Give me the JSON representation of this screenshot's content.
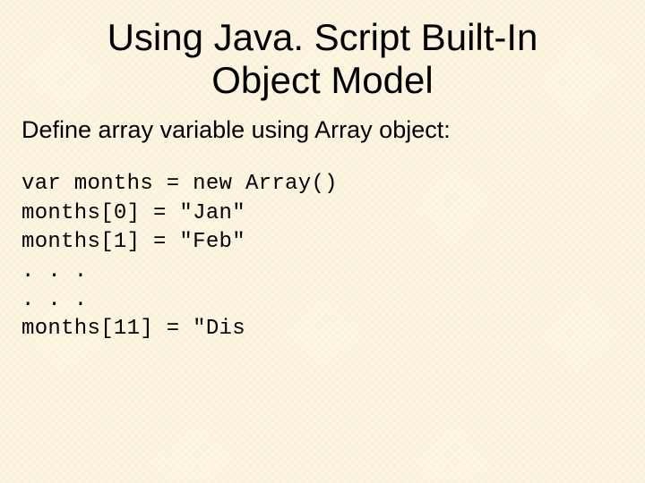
{
  "slide": {
    "title_line1": "Using Java. Script Built-In",
    "title_line2": "Object Model",
    "subtitle": "Define array variable using Array object:",
    "code": {
      "line1": "var months = new Array()",
      "line2": "months[0] = \"Jan\"",
      "line3": "months[1] = \"Feb\"",
      "line4": ". . .",
      "line5": ". . .",
      "line6": "months[11] = \"Dis"
    },
    "styling": {
      "background_color": "#fdf6e3",
      "text_color": "#000000",
      "title_fontsize": 42,
      "subtitle_fontsize": 27,
      "code_fontsize": 24,
      "title_font": "Arial",
      "code_font": "Courier New"
    }
  }
}
